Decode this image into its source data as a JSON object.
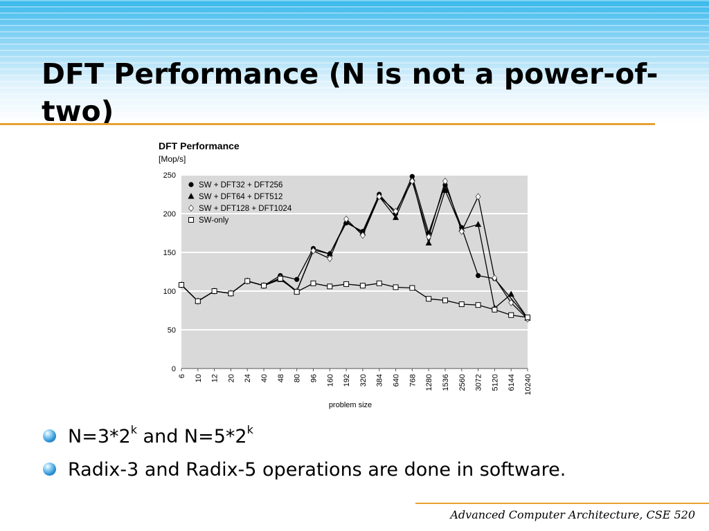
{
  "slide": {
    "title": "DFT Performance (N is not a power-of-two)",
    "bullets": [
      {
        "parts": [
          "N=3*2",
          "k",
          " and N=5*2",
          "k"
        ]
      },
      {
        "parts": [
          "Radix-3 and Radix-5 operations are done in software."
        ]
      }
    ],
    "footer": "Advanced Computer Architecture, CSE 520",
    "colors": {
      "accent_rule": "#e8a030",
      "header_blue": "#38b8ec",
      "plot_bg": "#d9d9d9"
    }
  },
  "chart_data": {
    "type": "line",
    "title": "DFT Performance",
    "ylabel": "[Mop/s]",
    "xlabel": "problem size",
    "ylim": [
      0,
      250
    ],
    "yticks": [
      0,
      50,
      100,
      150,
      200,
      250
    ],
    "grid": true,
    "legend_position": "top-left",
    "categories": [
      "6",
      "10",
      "12",
      "20",
      "24",
      "40",
      "48",
      "80",
      "96",
      "160",
      "192",
      "320",
      "384",
      "640",
      "768",
      "1280",
      "1536",
      "2560",
      "3072",
      "5120",
      "6144",
      "10240"
    ],
    "series": [
      {
        "name": "SW + DFT32 + DFT256",
        "marker": "filled-circle",
        "values": [
          108,
          87,
          100,
          97,
          113,
          107,
          120,
          115,
          155,
          148,
          188,
          177,
          225,
          200,
          248,
          175,
          237,
          182,
          120,
          116,
          null,
          65
        ]
      },
      {
        "name": "SW + DFT64 + DFT512",
        "marker": "filled-triangle",
        "values": [
          108,
          87,
          100,
          97,
          113,
          107,
          115,
          100,
          153,
          148,
          190,
          175,
          222,
          195,
          245,
          162,
          230,
          180,
          186,
          78,
          96,
          65
        ]
      },
      {
        "name": "SW + DFT128 + DFT1024",
        "marker": "open-diamond",
        "values": [
          108,
          87,
          100,
          97,
          113,
          107,
          117,
          100,
          152,
          142,
          193,
          172,
          222,
          203,
          242,
          170,
          242,
          177,
          222,
          117,
          85,
          64
        ]
      },
      {
        "name": "SW-only",
        "marker": "open-square",
        "values": [
          108,
          87,
          100,
          97,
          113,
          107,
          116,
          99,
          110,
          106,
          109,
          107,
          110,
          105,
          104,
          90,
          88,
          83,
          82,
          76,
          69,
          66
        ]
      }
    ]
  }
}
